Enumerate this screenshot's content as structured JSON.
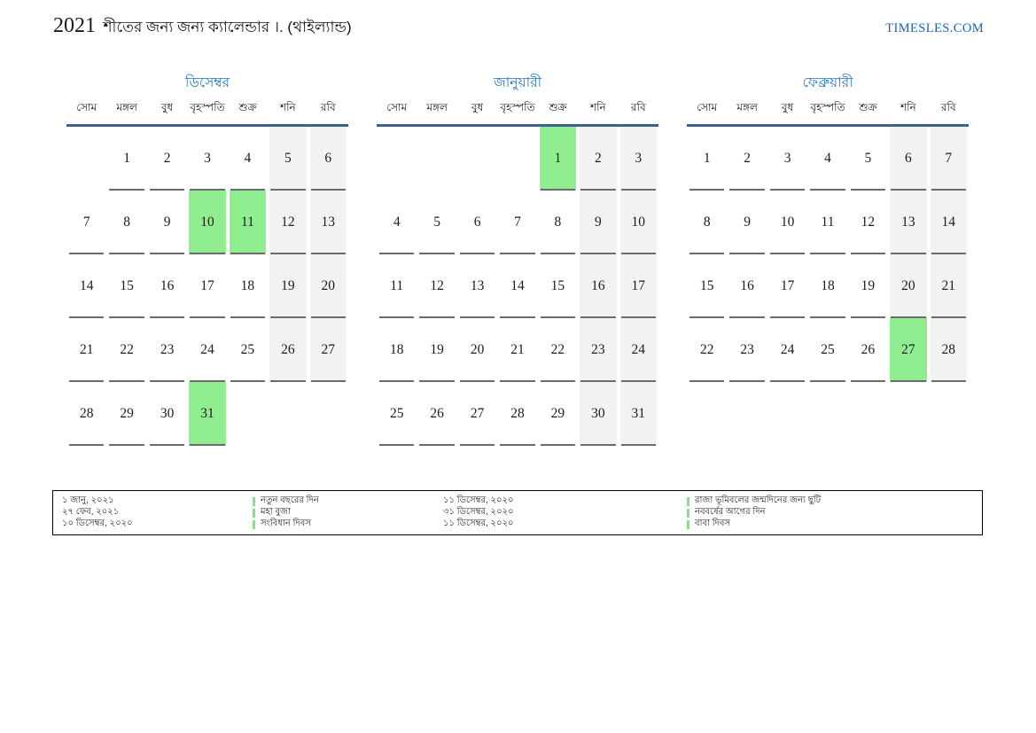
{
  "header": {
    "year": "2021",
    "title": "শীতের জন্য জন্য ক্যালেন্ডার ।. (থাইল্যান্ড)",
    "site": "TIMESLES.COM"
  },
  "colors": {
    "month_title_blue": "#2176c7",
    "site_blue": "#1c63b7",
    "weekday_rule_blue": "#3e618c",
    "holiday_green": "#90ee90",
    "weekend_gray": "#f2f2f2",
    "cell_underline_gray": "#6b6b6b"
  },
  "weekdays": [
    "সোম",
    "মঙ্গল",
    "বুধ",
    "বৃহস্পতি",
    "শুক্র",
    "শনি",
    "রবি"
  ],
  "months": [
    {
      "name": "ডিসেম্বর",
      "weeks": [
        [
          null,
          1,
          2,
          3,
          4,
          5,
          6
        ],
        [
          7,
          8,
          9,
          10,
          11,
          12,
          13
        ],
        [
          14,
          15,
          16,
          17,
          18,
          19,
          20
        ],
        [
          21,
          22,
          23,
          24,
          25,
          26,
          27
        ],
        [
          28,
          29,
          30,
          31,
          null,
          null,
          null
        ]
      ],
      "highlighted": [
        10,
        11,
        31
      ]
    },
    {
      "name": "জানুয়ারী",
      "weeks": [
        [
          null,
          null,
          null,
          null,
          1,
          2,
          3
        ],
        [
          4,
          5,
          6,
          7,
          8,
          9,
          10
        ],
        [
          11,
          12,
          13,
          14,
          15,
          16,
          17
        ],
        [
          18,
          19,
          20,
          21,
          22,
          23,
          24
        ],
        [
          25,
          26,
          27,
          28,
          29,
          30,
          31
        ]
      ],
      "highlighted": [
        1
      ]
    },
    {
      "name": "ফেব্রুয়ারী",
      "weeks": [
        [
          1,
          2,
          3,
          4,
          5,
          6,
          7
        ],
        [
          8,
          9,
          10,
          11,
          12,
          13,
          14
        ],
        [
          15,
          16,
          17,
          18,
          19,
          20,
          21
        ],
        [
          22,
          23,
          24,
          25,
          26,
          27,
          28
        ]
      ],
      "highlighted": [
        27
      ]
    }
  ],
  "legend": {
    "entries_left": [
      {
        "date": "১ জানু, ২০২১",
        "event": "নতুন বছরের দিন"
      },
      {
        "date": "২৭ ফেব, ২০২১",
        "event": "মহা বুজা"
      },
      {
        "date": "১০ ডিসেম্বর, ২০২০",
        "event": "সংবিধান দিবস"
      }
    ],
    "entries_right": [
      {
        "date": "১১ ডিসেম্বর, ২০২০",
        "event": "রাজা ভূমিবলের জন্মদিনের জন্য ছুটি"
      },
      {
        "date": "৩১ ডিসেম্বর, ২০২০",
        "event": "নববর্ষের আগের দিন"
      },
      {
        "date": "১১ ডিসেম্বর, ২০২০",
        "event": "বাবা দিবস"
      }
    ]
  }
}
